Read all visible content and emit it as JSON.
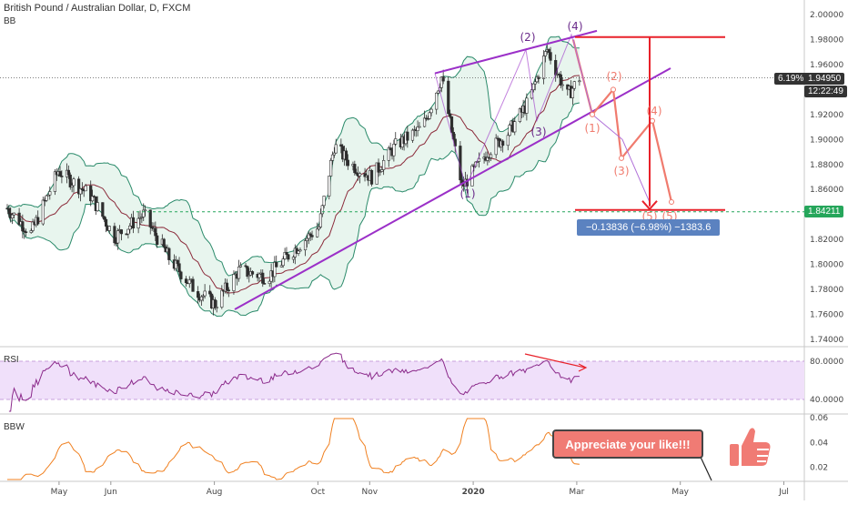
{
  "header": {
    "symbol_line": "British Pound / Australian Dollar, D, FXCM",
    "indicator_main": "BB"
  },
  "panes": {
    "rsi_label": "RSI",
    "bbw_label": "BBW"
  },
  "price_axis": {
    "labels": [
      "2.00000",
      "1.98000",
      "1.96000",
      "1.94000",
      "1.92000",
      "1.90000",
      "1.88000",
      "1.86000",
      "1.84000",
      "1.82000",
      "1.80000",
      "1.78000",
      "1.76000",
      "1.74000"
    ],
    "values": [
      2.0,
      1.98,
      1.96,
      1.94,
      1.92,
      1.9,
      1.88,
      1.86,
      1.84,
      1.82,
      1.8,
      1.78,
      1.76,
      1.74
    ],
    "current_pct": "6.19%",
    "current_price": "1.94950",
    "countdown": "12:22:49",
    "target_price": "1.84211",
    "current_color": "#333333",
    "target_color": "#26a65b"
  },
  "rsi_axis": {
    "labels": [
      "80.0000",
      "40.0000"
    ],
    "values": [
      80,
      40
    ],
    "range": [
      20,
      100
    ]
  },
  "bbw_axis": {
    "labels": [
      "0.06",
      "0.04",
      "0.02"
    ],
    "values": [
      0.06,
      0.04,
      0.02
    ],
    "range": [
      0,
      0.065
    ]
  },
  "time_axis": {
    "labels": [
      "May",
      "Jun",
      "Aug",
      "Oct",
      "Nov",
      "2020",
      "Mar",
      "May",
      "Jul"
    ],
    "months_from_apr1_2019": [
      1,
      2,
      4,
      6,
      7,
      9,
      11,
      13,
      15
    ]
  },
  "measure_label": "−0.13836 (−6.98%) −1383.6",
  "callout": "Appreciate your like!!!",
  "wave_labels_purple": [
    "(1)",
    "(2)",
    "(3)",
    "(4)"
  ],
  "wave_labels_red": [
    "(1)",
    "(2)",
    "(3)",
    "(4)",
    "(5)",
    "(5)"
  ],
  "colors": {
    "up_candle": "#2e2e2e",
    "down_candle": "#2e2e2e",
    "bb_fill": "#e8f5ee",
    "bb_band": "#2a8a6a",
    "bb_basis": "#8b2a3a",
    "trendline": "#9b30c8",
    "target_red": "#e8212a",
    "projection": "#f07b6e",
    "rsi_line": "#8b2a8b",
    "rsi_band": "#f0e0fa",
    "bbw_line": "#f08020",
    "measure_box": "#5b82c0"
  },
  "chart_data": {
    "type": "line",
    "title": "British Pound / Australian Dollar, D, FXCM",
    "xlabel": "",
    "ylabel": "",
    "ylim": [
      1.735,
      2.01
    ],
    "grid": false,
    "series": [
      {
        "name": "",
        "x": [
          "2019-04-01",
          "2019-04-15",
          "2019-05-01",
          "2019-05-20",
          "2019-06-03",
          "2019-06-20",
          "2019-07-05",
          "2019-07-20",
          "2019-08-01",
          "2019-08-15",
          "2019-09-01",
          "2019-09-15",
          "2019-10-01",
          "2019-10-10",
          "2019-10-20",
          "2019-11-01",
          "2019-11-15",
          "2019-12-01",
          "2019-12-12",
          "2019-12-24",
          "2020-01-08",
          "2020-01-20",
          "2020-02-01",
          "2020-02-12",
          "2020-02-24",
          "2020-03-02"
        ],
        "values": [
          1.845,
          1.825,
          1.875,
          1.855,
          1.822,
          1.84,
          1.805,
          1.78,
          1.768,
          1.795,
          1.79,
          1.81,
          1.83,
          1.895,
          1.88,
          1.87,
          1.895,
          1.91,
          1.95,
          1.862,
          1.89,
          1.905,
          1.93,
          1.972,
          1.935,
          1.9495
        ]
      }
    ],
    "annotations": {
      "target_level": 1.84211,
      "top_level": 1.982,
      "measured_change": -0.13836,
      "measured_pct": -6.98
    }
  }
}
